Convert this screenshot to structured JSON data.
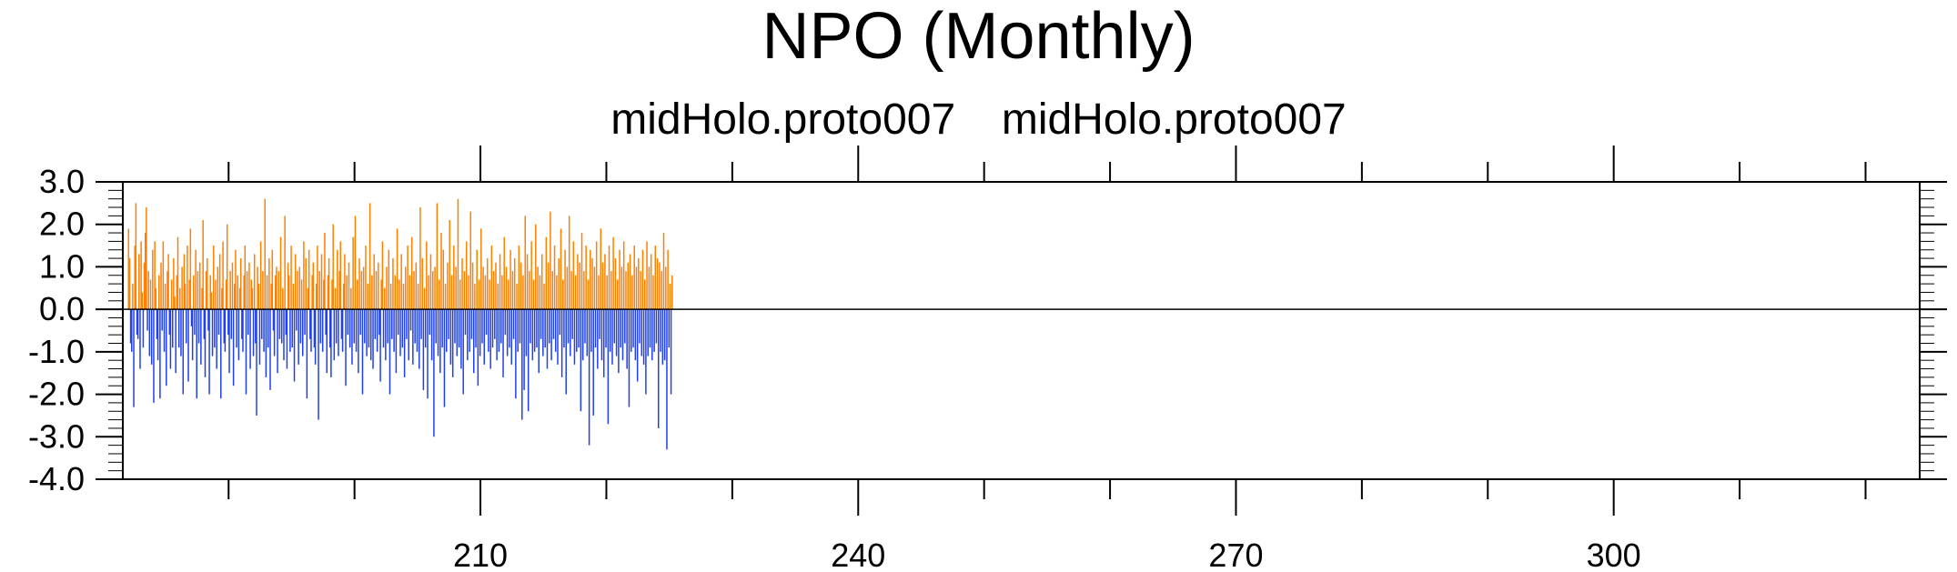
{
  "chart_data": {
    "type": "bar",
    "title": "NPO (Monthly)",
    "subtitle": "midHolo.proto007  midHolo.proto007",
    "xlabel": "",
    "ylabel": "",
    "xlim": [
      181.6,
      324.3
    ],
    "ylim": [
      -4.0,
      3.0
    ],
    "x_ticks": [
      210,
      240,
      270,
      300
    ],
    "x_tick_labels": [
      "210",
      "240",
      "270",
      "300"
    ],
    "y_ticks": [
      3.0,
      2.0,
      1.0,
      0.0,
      -1.0,
      -2.0,
      -3.0,
      -4.0
    ],
    "y_tick_labels": [
      "3.0",
      "2.0",
      "1.0",
      "0.0",
      "-1.0",
      "-2.0",
      "-3.0",
      "-4.0"
    ],
    "positive_color": "#ff8000",
    "negative_color": "#2040f0",
    "baseline": 0.0,
    "grid": false,
    "series": [
      {
        "points_per_year": 12,
        "start_year": 182,
        "values": [
          1.9,
          1.2,
          -0.8,
          -1.0,
          0.6,
          -2.3,
          1.5,
          2.5,
          -0.6,
          -0.7,
          1.3,
          -1.4,
          1.6,
          0.4,
          -0.9,
          1.1,
          1.8,
          2.4,
          -0.5,
          0.9,
          -1.1,
          0.7,
          -1.3,
          1.4,
          -2.2,
          1.6,
          0.5,
          -0.7,
          -1.2,
          0.8,
          -2.1,
          1.1,
          -0.5,
          1.6,
          -1.0,
          0.6,
          -1.8,
          0.9,
          1.3,
          -0.6,
          -1.4,
          0.7,
          -0.9,
          1.2,
          0.3,
          -1.5,
          0.8,
          1.7,
          -0.9,
          0.5,
          -1.1,
          1.0,
          -2.0,
          1.3,
          0.6,
          -0.8,
          1.5,
          -1.7,
          0.7,
          1.9,
          -0.4,
          -1.2,
          0.8,
          -0.6,
          1.4,
          -2.1,
          0.9,
          -0.8,
          1.1,
          -1.3,
          0.5,
          2.1,
          -0.7,
          -1.6,
          0.9,
          1.2,
          -0.5,
          -2.0,
          0.8,
          0.4,
          -1.1,
          1.5,
          -0.9,
          0.7,
          -1.4,
          1.0,
          -0.6,
          1.3,
          -2.1,
          0.5,
          1.6,
          -0.8,
          -1.0,
          0.7,
          2.0,
          -0.6,
          -1.5,
          0.9,
          -0.7,
          1.1,
          -1.8,
          0.6,
          1.4,
          -0.9,
          0.8,
          -1.2,
          0.5,
          1.2,
          -0.7,
          -1.0,
          0.8,
          1.5,
          -2.0,
          0.9,
          -0.6,
          1.1,
          -1.4,
          0.7,
          0.5,
          -1.1,
          1.3,
          -0.8,
          -2.5,
          1.0,
          0.6,
          -1.3,
          1.6,
          -0.7,
          0.9,
          -1.0,
          2.6,
          -1.6,
          0.8,
          -0.9,
          1.2,
          -1.9,
          0.6,
          1.4,
          -0.5,
          -1.1,
          0.8,
          1.0,
          -1.5,
          0.9,
          -0.7,
          1.7,
          -0.8,
          0.5,
          -1.2,
          2.2,
          -0.6,
          -1.4,
          1.1,
          0.8,
          -1.0,
          1.5,
          -0.9,
          0.6,
          -1.7,
          1.3,
          -0.5,
          0.9,
          -1.3,
          1.0,
          -0.8,
          0.7,
          -1.1,
          1.6,
          -0.6,
          1.2,
          -2.1,
          0.5,
          1.4,
          -0.7,
          -1.0,
          0.8,
          1.1,
          -0.9,
          -1.3,
          0.6,
          1.5,
          -2.6,
          0.9,
          -0.8,
          1.3,
          -1.0,
          0.7,
          1.8,
          -0.6,
          -1.5,
          0.8,
          1.2,
          -0.9,
          -1.6,
          0.7,
          2.0,
          -1.2,
          0.5,
          -0.8,
          1.4,
          -1.1,
          0.9,
          1.6,
          -0.7,
          -1.0,
          0.6,
          1.3,
          -1.8,
          0.8,
          -0.6,
          1.1,
          -0.9,
          0.5,
          -1.3,
          1.7,
          -0.8,
          2.2,
          -1.0,
          0.7,
          -1.5,
          1.2,
          -0.6,
          0.9,
          -2.0,
          1.0,
          -0.8,
          1.5,
          -1.1,
          0.6,
          -0.9,
          2.5,
          -1.2,
          0.8,
          -1.4,
          1.3,
          -0.7,
          0.9,
          -1.0,
          1.1,
          -0.6,
          -1.7,
          0.7,
          1.6,
          -0.9,
          0.5,
          -1.2,
          1.0,
          -0.8,
          1.4,
          -2.0,
          0.6,
          -0.7,
          1.2,
          -1.0,
          0.8,
          -1.5,
          1.9,
          -0.6,
          0.7,
          -1.1,
          1.3,
          -0.9,
          0.6,
          -1.6,
          1.0,
          -0.7,
          1.5,
          -1.2,
          0.8,
          -0.5,
          1.7,
          -1.3,
          0.9,
          -0.8,
          1.1,
          -1.0,
          0.6,
          -1.4,
          2.4,
          -0.7,
          1.2,
          -1.9,
          0.5,
          -0.9,
          1.6,
          -2.1,
          0.8,
          -0.6,
          1.3,
          -1.2,
          0.9,
          -3.0,
          1.0,
          -0.8,
          2.5,
          -1.1,
          0.7,
          -1.5,
          1.8,
          -0.9,
          1.4,
          -2.3,
          0.6,
          -1.0,
          1.1,
          -0.7,
          2.1,
          -1.3,
          0.8,
          -1.6,
          1.5,
          -0.8,
          1.0,
          -1.1,
          2.6,
          -0.9,
          0.7,
          -1.4,
          1.2,
          -2.0,
          0.9,
          -0.6,
          1.6,
          -1.2,
          0.8,
          -1.0,
          2.3,
          -0.7,
          1.1,
          -1.5,
          0.6,
          -0.9,
          1.4,
          -1.8,
          0.7,
          -1.1,
          1.9,
          -0.8,
          1.0,
          -1.3,
          0.8,
          -0.6,
          1.2,
          -1.0,
          0.7,
          -1.4,
          1.5,
          -0.9,
          0.9,
          -0.7,
          1.1,
          -1.2,
          0.6,
          -1.0,
          1.3,
          -0.8,
          0.8,
          -1.6,
          1.7,
          -0.6,
          1.0,
          -1.1,
          0.7,
          -0.9,
          1.4,
          -1.3,
          0.9,
          -0.7,
          1.2,
          -2.1,
          0.6,
          -1.0,
          1.5,
          -0.8,
          1.1,
          -2.6,
          0.8,
          -1.9,
          2.2,
          -1.1,
          1.3,
          -2.4,
          0.9,
          -0.8,
          1.6,
          -1.2,
          0.7,
          -1.0,
          2.0,
          -0.9,
          1.0,
          -1.5,
          0.8,
          -0.7,
          1.3,
          -1.1,
          0.6,
          -0.9,
          1.7,
          -1.4,
          1.1,
          -0.8,
          2.3,
          -1.2,
          0.9,
          -0.7,
          1.5,
          -1.0,
          0.8,
          -1.3,
          1.2,
          -0.6,
          1.9,
          -1.6,
          0.7,
          -0.9,
          1.4,
          -2.0,
          1.0,
          -0.8,
          2.2,
          -1.1,
          0.9,
          -0.7,
          1.6,
          -1.3,
          0.8,
          -1.0,
          1.3,
          -0.9,
          1.1,
          -2.4,
          1.8,
          -1.2,
          0.9,
          -0.8,
          1.5,
          -1.1,
          0.7,
          -3.2,
          1.4,
          -1.0,
          1.2,
          -2.5,
          1.0,
          -0.9,
          1.6,
          -1.4,
          0.8,
          -0.7,
          1.9,
          -1.2,
          1.1,
          -1.6,
          1.3,
          -0.9,
          0.8,
          -2.7,
          1.5,
          -1.0,
          0.9,
          -1.3,
          1.7,
          -0.8,
          1.2,
          -1.1,
          0.7,
          -1.5,
          1.4,
          -0.9,
          1.0,
          -1.2,
          1.6,
          -0.8,
          0.9,
          -1.4,
          1.1,
          -2.3,
          1.3,
          -1.0,
          0.8,
          -0.9,
          1.5,
          -1.2,
          1.0,
          -1.7,
          1.2,
          -0.8,
          0.9,
          -1.1,
          1.4,
          -1.3,
          0.7,
          -2.0,
          1.6,
          -1.1,
          1.0,
          -0.9,
          1.3,
          -1.2,
          0.8,
          -1.0,
          1.5,
          -0.8,
          1.2,
          -2.8,
          1.1,
          -1.0,
          0.9,
          -1.3,
          1.8,
          -1.2,
          1.0,
          -3.3,
          1.4,
          -0.9,
          0.6,
          -2.0,
          0.8
        ]
      }
    ]
  }
}
